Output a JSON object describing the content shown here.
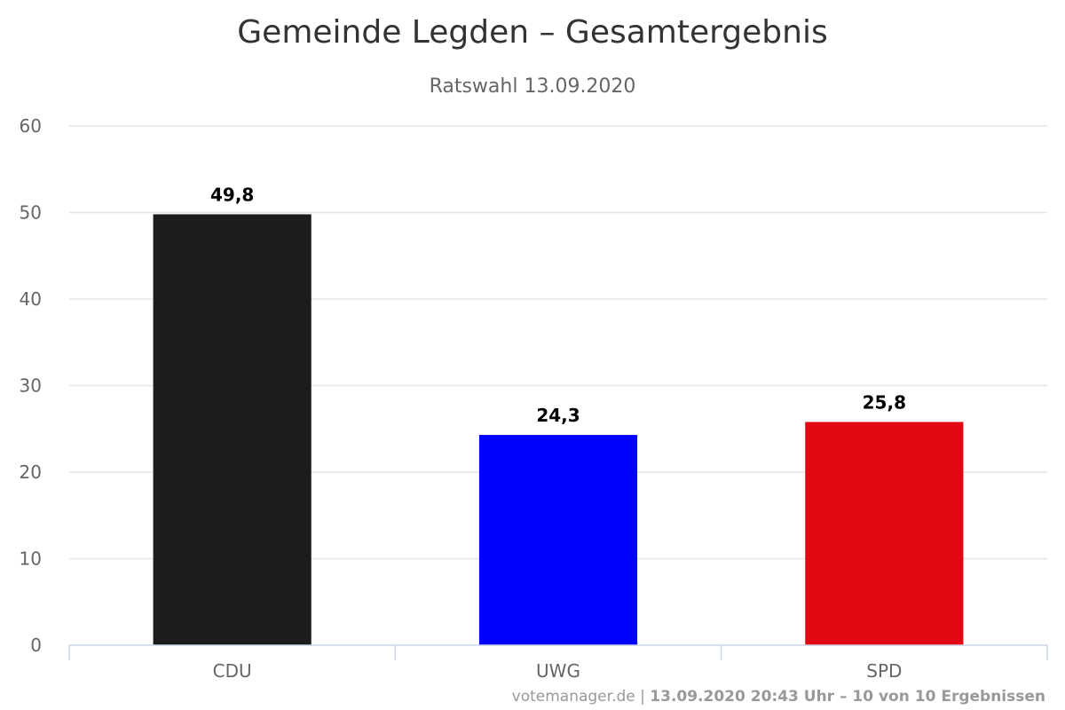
{
  "chart_data": {
    "type": "bar",
    "title": "Gemeinde Legden – Gesamtergebnis",
    "subtitle": "Ratswahl 13.09.2020",
    "categories": [
      "CDU",
      "UWG",
      "SPD"
    ],
    "values": [
      49.8,
      24.3,
      25.8
    ],
    "data_labels": [
      "49,8",
      "24,3",
      "25,8"
    ],
    "colors": [
      "#1c1c1c",
      "#0000ff",
      "#e30613"
    ],
    "ylim": [
      0,
      60
    ],
    "yticks": [
      0,
      10,
      20,
      30,
      40,
      50,
      60
    ],
    "xlabel": "",
    "ylabel": "",
    "grid": true,
    "legend": "none"
  },
  "credits": {
    "source": "votemanager.de",
    "separator": " | ",
    "info": "13.09.2020 20:43 Uhr – 10 von 10 Ergebnissen"
  }
}
